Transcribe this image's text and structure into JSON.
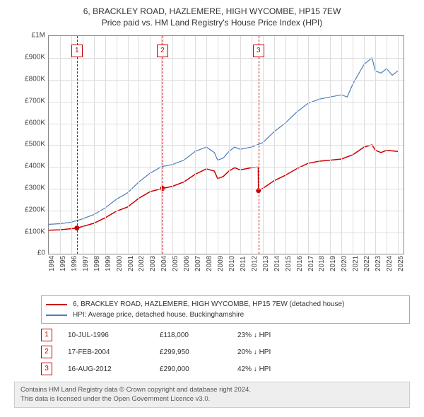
{
  "title": {
    "line1": "6, BRACKLEY ROAD, HAZLEMERE, HIGH WYCOMBE, HP15 7EW",
    "line2": "Price paid vs. HM Land Registry's House Price Index (HPI)",
    "fontsize": 12,
    "color": "#333333"
  },
  "chart": {
    "type": "line",
    "background_color": "#ffffff",
    "grid_color": "#dddddd",
    "border_color": "#888888",
    "x": {
      "min": 1994,
      "max": 2025.5,
      "ticks": [
        1994,
        1995,
        1996,
        1997,
        1998,
        1999,
        2000,
        2001,
        2002,
        2003,
        2004,
        2005,
        2006,
        2007,
        2008,
        2009,
        2010,
        2011,
        2012,
        2013,
        2014,
        2015,
        2016,
        2017,
        2018,
        2019,
        2020,
        2021,
        2022,
        2023,
        2024,
        2025
      ],
      "label_fontsize": 10,
      "label_rotation": -90
    },
    "y": {
      "min": 0,
      "max": 1000000,
      "ticks": [
        0,
        100000,
        200000,
        300000,
        400000,
        500000,
        600000,
        700000,
        800000,
        900000,
        1000000
      ],
      "tick_labels": [
        "£0",
        "£100K",
        "£200K",
        "£300K",
        "£400K",
        "£500K",
        "£600K",
        "£700K",
        "£800K",
        "£900K",
        "£1M"
      ],
      "label_fontsize": 10
    },
    "series": {
      "hpi": {
        "label": "HPI: Average price, detached house, Buckinghamshire",
        "color": "#4a7ebb",
        "width": 1.2,
        "points": [
          [
            1994.0,
            135000
          ],
          [
            1995.0,
            138000
          ],
          [
            1996.0,
            145000
          ],
          [
            1997.0,
            160000
          ],
          [
            1998.0,
            180000
          ],
          [
            1999.0,
            210000
          ],
          [
            2000.0,
            250000
          ],
          [
            2001.0,
            280000
          ],
          [
            2002.0,
            330000
          ],
          [
            2003.0,
            370000
          ],
          [
            2004.0,
            400000
          ],
          [
            2005.0,
            410000
          ],
          [
            2006.0,
            430000
          ],
          [
            2007.0,
            470000
          ],
          [
            2008.0,
            490000
          ],
          [
            2008.7,
            465000
          ],
          [
            2009.0,
            430000
          ],
          [
            2009.5,
            440000
          ],
          [
            2010.0,
            470000
          ],
          [
            2010.5,
            490000
          ],
          [
            2011.0,
            480000
          ],
          [
            2012.0,
            490000
          ],
          [
            2013.0,
            510000
          ],
          [
            2014.0,
            560000
          ],
          [
            2015.0,
            600000
          ],
          [
            2016.0,
            650000
          ],
          [
            2017.0,
            690000
          ],
          [
            2018.0,
            710000
          ],
          [
            2019.0,
            720000
          ],
          [
            2020.0,
            730000
          ],
          [
            2020.5,
            720000
          ],
          [
            2021.0,
            780000
          ],
          [
            2022.0,
            870000
          ],
          [
            2022.7,
            900000
          ],
          [
            2023.0,
            840000
          ],
          [
            2023.5,
            830000
          ],
          [
            2024.0,
            850000
          ],
          [
            2024.5,
            820000
          ],
          [
            2025.0,
            840000
          ]
        ]
      },
      "property": {
        "label": "6, BRACKLEY ROAD, HAZLEMERE, HIGH WYCOMBE, HP15 7EW (detached house)",
        "color": "#cc0000",
        "width": 1.5,
        "points": [
          [
            1994.0,
            108000
          ],
          [
            1995.0,
            110000
          ],
          [
            1996.5,
            118000
          ],
          [
            1997.0,
            125000
          ],
          [
            1998.0,
            140000
          ],
          [
            1999.0,
            165000
          ],
          [
            2000.0,
            195000
          ],
          [
            2001.0,
            215000
          ],
          [
            2002.0,
            255000
          ],
          [
            2003.0,
            285000
          ],
          [
            2004.1,
            299950
          ],
          [
            2005.0,
            310000
          ],
          [
            2006.0,
            330000
          ],
          [
            2007.0,
            365000
          ],
          [
            2008.0,
            390000
          ],
          [
            2008.7,
            380000
          ],
          [
            2009.0,
            345000
          ],
          [
            2009.5,
            355000
          ],
          [
            2010.0,
            380000
          ],
          [
            2010.5,
            395000
          ],
          [
            2011.0,
            385000
          ],
          [
            2012.0,
            395000
          ],
          [
            2012.6,
            398000
          ],
          [
            2012.62,
            290000
          ],
          [
            2013.0,
            300000
          ],
          [
            2014.0,
            335000
          ],
          [
            2015.0,
            360000
          ],
          [
            2016.0,
            390000
          ],
          [
            2017.0,
            415000
          ],
          [
            2018.0,
            425000
          ],
          [
            2019.0,
            430000
          ],
          [
            2020.0,
            435000
          ],
          [
            2021.0,
            455000
          ],
          [
            2022.0,
            490000
          ],
          [
            2022.7,
            500000
          ],
          [
            2023.0,
            475000
          ],
          [
            2023.5,
            465000
          ],
          [
            2024.0,
            475000
          ],
          [
            2025.0,
            470000
          ]
        ]
      }
    },
    "markers": [
      {
        "n": "1",
        "x": 1996.5,
        "y": 118000
      },
      {
        "n": "2",
        "x": 2004.1,
        "y": 299950
      },
      {
        "n": "3",
        "x": 2012.62,
        "y": 290000
      }
    ],
    "marker_box_color": "#cc0000",
    "marker_dash_color": "#cc0000"
  },
  "legend": {
    "border_color": "#aaaaaa",
    "fontsize": 10,
    "items": [
      {
        "color": "#cc0000",
        "label": "6, BRACKLEY ROAD, HAZLEMERE, HIGH WYCOMBE, HP15 7EW (detached house)"
      },
      {
        "color": "#4a7ebb",
        "label": "HPI: Average price, detached house, Buckinghamshire"
      }
    ]
  },
  "events": [
    {
      "n": "1",
      "date": "10-JUL-1996",
      "price": "£118,000",
      "delta": "23% ↓ HPI"
    },
    {
      "n": "2",
      "date": "17-FEB-2004",
      "price": "£299,950",
      "delta": "20% ↓ HPI"
    },
    {
      "n": "3",
      "date": "16-AUG-2012",
      "price": "£290,000",
      "delta": "42% ↓ HPI"
    }
  ],
  "footer": {
    "line1": "Contains HM Land Registry data © Crown copyright and database right 2024.",
    "line2": "This data is licensed under the Open Government Licence v3.0.",
    "background": "#eeeeee",
    "border": "#cccccc",
    "fontsize": 9.5
  }
}
